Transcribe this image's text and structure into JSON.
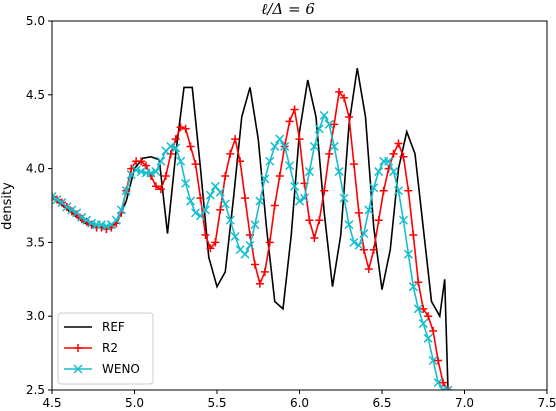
{
  "chart_data": {
    "type": "line",
    "title": "ℓ/Δ = 6",
    "xlabel": "",
    "ylabel": "density",
    "xlim": [
      4.5,
      7.5
    ],
    "ylim": [
      2.5,
      5.0
    ],
    "xticks": [
      "4.5",
      "5.0",
      "5.5",
      "6.0",
      "6.5",
      "7.0",
      "7.5"
    ],
    "yticks": [
      "2.5",
      "3.0",
      "3.5",
      "4.0",
      "4.5",
      "5.0"
    ],
    "grid": false,
    "legend_position": "lower-left",
    "series": [
      {
        "name": "REF",
        "color": "#000000",
        "marker": "none",
        "x": [
          4.5,
          4.55,
          4.6,
          4.65,
          4.7,
          4.75,
          4.8,
          4.85,
          4.9,
          4.95,
          5.0,
          5.05,
          5.1,
          5.15,
          5.2,
          5.25,
          5.3,
          5.35,
          5.4,
          5.45,
          5.5,
          5.55,
          5.6,
          5.65,
          5.7,
          5.75,
          5.8,
          5.85,
          5.9,
          5.95,
          6.0,
          6.05,
          6.1,
          6.15,
          6.2,
          6.25,
          6.3,
          6.35,
          6.4,
          6.45,
          6.5,
          6.55,
          6.6,
          6.65,
          6.7,
          6.75,
          6.8,
          6.85,
          6.88,
          6.9,
          6.9
        ],
        "y": [
          3.81,
          3.76,
          3.72,
          3.67,
          3.63,
          3.61,
          3.6,
          3.6,
          3.65,
          3.78,
          4.0,
          4.07,
          4.08,
          4.06,
          3.56,
          4.1,
          4.55,
          4.55,
          4.0,
          3.4,
          3.2,
          3.3,
          3.8,
          4.35,
          4.55,
          4.2,
          3.6,
          3.1,
          3.05,
          3.55,
          4.25,
          4.6,
          4.35,
          3.7,
          3.2,
          3.55,
          4.3,
          4.68,
          4.35,
          3.6,
          3.18,
          3.45,
          4.0,
          4.25,
          4.1,
          3.6,
          3.1,
          3.0,
          3.25,
          2.5,
          2.5
        ]
      },
      {
        "name": "R2",
        "color": "#ff0000",
        "marker": "plus",
        "x": [
          4.5,
          4.53,
          4.56,
          4.59,
          4.62,
          4.65,
          4.68,
          4.71,
          4.74,
          4.77,
          4.8,
          4.83,
          4.86,
          4.89,
          4.92,
          4.95,
          4.98,
          5.01,
          5.04,
          5.07,
          5.1,
          5.13,
          5.16,
          5.19,
          5.22,
          5.25,
          5.28,
          5.31,
          5.34,
          5.37,
          5.4,
          5.43,
          5.46,
          5.49,
          5.52,
          5.55,
          5.58,
          5.61,
          5.64,
          5.67,
          5.7,
          5.73,
          5.76,
          5.79,
          5.82,
          5.85,
          5.88,
          5.91,
          5.94,
          5.97,
          6.0,
          6.03,
          6.06,
          6.09,
          6.12,
          6.15,
          6.18,
          6.21,
          6.24,
          6.27,
          6.3,
          6.33,
          6.36,
          6.39,
          6.42,
          6.45,
          6.48,
          6.51,
          6.54,
          6.57,
          6.6,
          6.63,
          6.66,
          6.69,
          6.72,
          6.75,
          6.78,
          6.81,
          6.84,
          6.87,
          6.9
        ],
        "y": [
          3.81,
          3.79,
          3.77,
          3.74,
          3.71,
          3.69,
          3.66,
          3.64,
          3.62,
          3.6,
          3.6,
          3.59,
          3.6,
          3.63,
          3.7,
          3.85,
          4.0,
          4.05,
          4.05,
          4.02,
          3.95,
          3.88,
          3.86,
          3.95,
          4.1,
          4.2,
          4.28,
          4.27,
          4.15,
          4.03,
          3.8,
          3.55,
          3.46,
          3.5,
          3.72,
          3.95,
          4.1,
          4.2,
          4.05,
          3.8,
          3.55,
          3.35,
          3.22,
          3.3,
          3.5,
          3.75,
          3.95,
          4.15,
          4.32,
          4.4,
          4.2,
          3.9,
          3.65,
          3.53,
          3.65,
          3.85,
          4.1,
          4.3,
          4.52,
          4.48,
          4.35,
          4.03,
          3.7,
          3.45,
          3.32,
          3.45,
          3.65,
          3.85,
          4.0,
          4.1,
          4.17,
          4.08,
          3.85,
          3.55,
          3.23,
          3.05,
          3.0,
          2.9,
          2.7,
          2.55,
          2.5
        ]
      },
      {
        "name": "WENO",
        "color": "#17becf",
        "marker": "x",
        "x": [
          4.5,
          4.53,
          4.56,
          4.59,
          4.62,
          4.65,
          4.68,
          4.71,
          4.74,
          4.77,
          4.8,
          4.83,
          4.86,
          4.89,
          4.92,
          4.95,
          4.98,
          5.01,
          5.04,
          5.07,
          5.1,
          5.13,
          5.16,
          5.19,
          5.22,
          5.25,
          5.28,
          5.31,
          5.34,
          5.37,
          5.4,
          5.43,
          5.46,
          5.49,
          5.52,
          5.55,
          5.58,
          5.61,
          5.64,
          5.67,
          5.7,
          5.73,
          5.76,
          5.79,
          5.82,
          5.85,
          5.88,
          5.91,
          5.94,
          5.97,
          6.0,
          6.03,
          6.06,
          6.09,
          6.12,
          6.15,
          6.18,
          6.21,
          6.24,
          6.27,
          6.3,
          6.33,
          6.36,
          6.39,
          6.42,
          6.45,
          6.48,
          6.51,
          6.54,
          6.57,
          6.6,
          6.63,
          6.66,
          6.69,
          6.72,
          6.75,
          6.78,
          6.81,
          6.84,
          6.87,
          6.9
        ],
        "y": [
          3.81,
          3.79,
          3.77,
          3.74,
          3.72,
          3.7,
          3.67,
          3.65,
          3.63,
          3.62,
          3.62,
          3.61,
          3.62,
          3.65,
          3.72,
          3.85,
          3.96,
          3.99,
          3.98,
          3.97,
          3.97,
          3.98,
          4.05,
          4.12,
          4.15,
          4.14,
          4.05,
          3.9,
          3.78,
          3.7,
          3.68,
          3.72,
          3.82,
          3.88,
          3.84,
          3.76,
          3.65,
          3.54,
          3.45,
          3.42,
          3.48,
          3.62,
          3.78,
          3.93,
          4.05,
          4.15,
          4.2,
          4.15,
          4.02,
          3.88,
          3.78,
          3.8,
          3.98,
          4.15,
          4.27,
          4.36,
          4.3,
          4.15,
          3.98,
          3.8,
          3.62,
          3.5,
          3.48,
          3.56,
          3.72,
          3.87,
          3.98,
          4.05,
          4.05,
          3.98,
          3.85,
          3.65,
          3.42,
          3.2,
          3.05,
          2.95,
          2.85,
          2.7,
          2.55,
          2.5,
          2.5
        ]
      }
    ]
  }
}
